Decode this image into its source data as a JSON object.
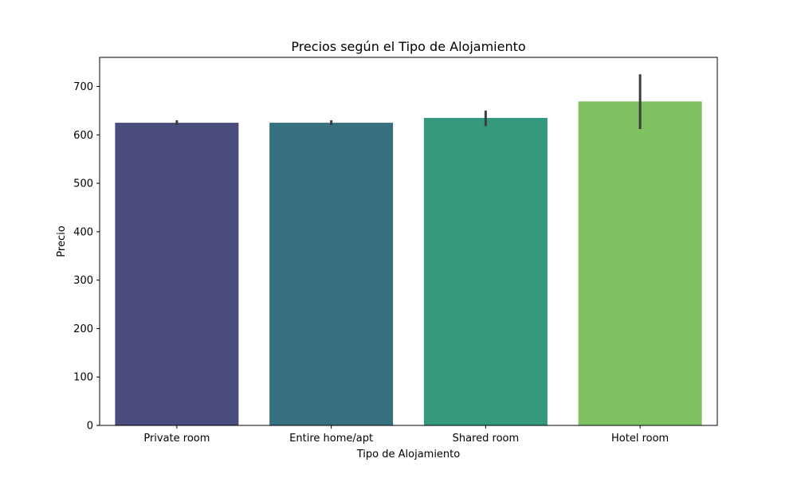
{
  "chart_data": {
    "type": "bar",
    "title": "Precios según el Tipo de Alojamiento",
    "xlabel": "Tipo de Alojamiento",
    "ylabel": "Precio",
    "categories": [
      "Private room",
      "Entire home/apt",
      "Shared room",
      "Hotel room"
    ],
    "values": [
      625,
      625,
      635,
      669
    ],
    "error_bars": [
      [
        620,
        630
      ],
      [
        620,
        630
      ],
      [
        618,
        650
      ],
      [
        612,
        725
      ]
    ],
    "colors": [
      "#4a4c7d",
      "#37717f",
      "#35997d",
      "#80c261"
    ],
    "error_bar_color": "#3d3d3d",
    "ylim": [
      0,
      760
    ],
    "yticks": [
      0,
      100,
      200,
      300,
      400,
      500,
      600,
      700
    ],
    "grid": false,
    "legend": "none"
  }
}
